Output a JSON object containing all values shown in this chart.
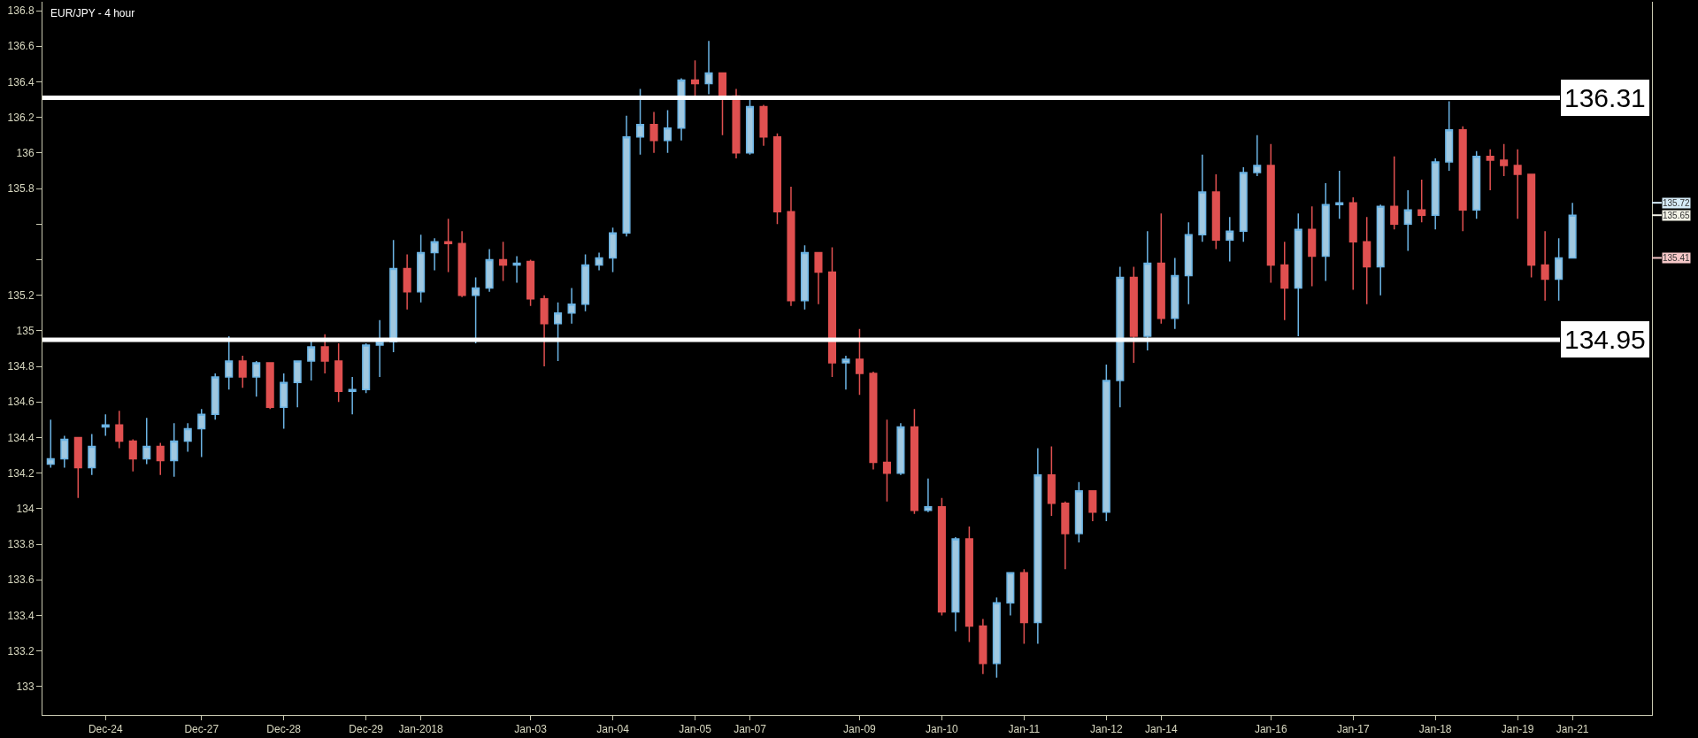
{
  "chart_data": {
    "type": "candlestick",
    "title": "EUR/JPY - 4 hour",
    "categories": [
      null,
      null,
      null,
      null,
      "Dec-24",
      null,
      null,
      null,
      null,
      null,
      null,
      "Dec-27",
      null,
      null,
      null,
      null,
      null,
      "Dec-28",
      null,
      null,
      null,
      null,
      null,
      "Dec-29",
      null,
      null,
      null,
      "Jan-2018",
      null,
      null,
      null,
      null,
      null,
      null,
      null,
      "Jan-03",
      null,
      null,
      null,
      null,
      null,
      "Jan-04",
      null,
      null,
      null,
      null,
      null,
      "Jan-05",
      null,
      null,
      null,
      "Jan-07",
      null,
      null,
      null,
      null,
      null,
      null,
      null,
      "Jan-09",
      null,
      null,
      null,
      null,
      null,
      "Jan-10",
      null,
      null,
      null,
      null,
      null,
      "Jan-11",
      null,
      null,
      null,
      null,
      null,
      "Jan-12",
      null,
      null,
      null,
      "Jan-14",
      null,
      null,
      null,
      null,
      null,
      null,
      null,
      "Jan-16",
      null,
      null,
      null,
      null,
      null,
      "Jan-17",
      null,
      null,
      null,
      null,
      null,
      "Jan-18",
      null,
      null,
      null,
      null,
      null,
      "Jan-19",
      null,
      null,
      null,
      "Jan-21"
    ],
    "ohlc": [
      [
        134.25,
        134.5,
        134.23,
        134.28
      ],
      [
        134.28,
        134.41,
        134.23,
        134.39
      ],
      [
        134.4,
        134.4,
        134.06,
        134.23
      ],
      [
        134.23,
        134.42,
        134.19,
        134.35
      ],
      [
        134.46,
        134.53,
        134.41,
        134.47
      ],
      [
        134.47,
        134.55,
        134.34,
        134.38
      ],
      [
        134.38,
        134.39,
        134.21,
        134.28
      ],
      [
        134.28,
        134.51,
        134.25,
        134.35
      ],
      [
        134.35,
        134.37,
        134.19,
        134.27
      ],
      [
        134.27,
        134.48,
        134.18,
        134.38
      ],
      [
        134.38,
        134.48,
        134.32,
        134.45
      ],
      [
        134.45,
        134.56,
        134.29,
        134.53
      ],
      [
        134.53,
        134.76,
        134.5,
        134.74
      ],
      [
        134.74,
        134.97,
        134.67,
        134.83
      ],
      [
        134.83,
        134.86,
        134.68,
        134.74
      ],
      [
        134.74,
        134.83,
        134.63,
        134.82
      ],
      [
        134.82,
        134.82,
        134.56,
        134.57
      ],
      [
        134.57,
        134.76,
        134.45,
        134.71
      ],
      [
        134.71,
        134.83,
        134.57,
        134.83
      ],
      [
        134.83,
        134.94,
        134.72,
        134.91
      ],
      [
        134.91,
        134.98,
        134.76,
        134.83
      ],
      [
        134.83,
        134.93,
        134.6,
        134.66
      ],
      [
        134.66,
        134.74,
        134.53,
        134.67
      ],
      [
        134.67,
        134.93,
        134.65,
        134.92
      ],
      [
        134.92,
        135.06,
        134.74,
        134.94
      ],
      [
        134.94,
        135.51,
        134.88,
        135.35
      ],
      [
        135.35,
        135.43,
        135.12,
        135.22
      ],
      [
        135.22,
        135.54,
        135.16,
        135.44
      ],
      [
        135.44,
        135.52,
        135.34,
        135.5
      ],
      [
        135.5,
        135.63,
        135.33,
        135.49
      ],
      [
        135.49,
        135.56,
        135.19,
        135.2
      ],
      [
        135.2,
        135.3,
        134.93,
        135.24
      ],
      [
        135.24,
        135.46,
        135.22,
        135.4
      ],
      [
        135.4,
        135.5,
        135.28,
        135.37
      ],
      [
        135.37,
        135.42,
        135.27,
        135.38
      ],
      [
        135.39,
        135.4,
        135.14,
        135.18
      ],
      [
        135.18,
        135.2,
        134.8,
        135.04
      ],
      [
        135.04,
        135.16,
        134.83,
        135.1
      ],
      [
        135.1,
        135.24,
        135.04,
        135.15
      ],
      [
        135.15,
        135.43,
        135.11,
        135.37
      ],
      [
        135.37,
        135.44,
        135.34,
        135.41
      ],
      [
        135.41,
        135.58,
        135.33,
        135.55
      ],
      [
        135.55,
        136.21,
        135.53,
        136.09
      ],
      [
        136.09,
        136.36,
        135.99,
        136.16
      ],
      [
        136.16,
        136.23,
        136.0,
        136.07
      ],
      [
        136.07,
        136.24,
        136.0,
        136.14
      ],
      [
        136.14,
        136.42,
        136.07,
        136.41
      ],
      [
        136.41,
        136.52,
        136.32,
        136.39
      ],
      [
        136.39,
        136.63,
        136.33,
        136.45
      ],
      [
        136.45,
        136.45,
        136.1,
        136.32
      ],
      [
        136.32,
        136.36,
        135.97,
        136.0
      ],
      [
        136.0,
        136.3,
        135.99,
        136.26
      ],
      [
        136.26,
        136.27,
        136.04,
        136.09
      ],
      [
        136.09,
        136.11,
        135.6,
        135.67
      ],
      [
        135.67,
        135.81,
        135.14,
        135.17
      ],
      [
        135.17,
        135.48,
        135.12,
        135.44
      ],
      [
        135.44,
        135.44,
        135.15,
        135.33
      ],
      [
        135.33,
        135.47,
        134.74,
        134.82
      ],
      [
        134.82,
        134.86,
        134.67,
        134.84
      ],
      [
        134.84,
        135.01,
        134.64,
        134.76
      ],
      [
        134.76,
        134.77,
        134.22,
        134.26
      ],
      [
        134.26,
        134.5,
        134.04,
        134.2
      ],
      [
        134.2,
        134.48,
        134.19,
        134.46
      ],
      [
        134.46,
        134.56,
        133.97,
        133.99
      ],
      [
        133.99,
        134.17,
        133.98,
        134.01
      ],
      [
        134.01,
        134.06,
        133.4,
        133.42
      ],
      [
        133.42,
        133.84,
        133.31,
        133.83
      ],
      [
        133.83,
        133.9,
        133.25,
        133.34
      ],
      [
        133.34,
        133.38,
        133.07,
        133.13
      ],
      [
        133.13,
        133.5,
        133.05,
        133.47
      ],
      [
        133.47,
        133.64,
        133.4,
        133.64
      ],
      [
        133.64,
        133.66,
        133.24,
        133.36
      ],
      [
        133.36,
        134.34,
        133.24,
        134.19
      ],
      [
        134.19,
        134.35,
        133.96,
        134.03
      ],
      [
        134.03,
        134.04,
        133.66,
        133.86
      ],
      [
        133.86,
        134.15,
        133.81,
        134.1
      ],
      [
        134.1,
        134.1,
        133.93,
        133.98
      ],
      [
        133.98,
        134.81,
        133.93,
        134.72
      ],
      [
        134.72,
        135.36,
        134.57,
        135.3
      ],
      [
        135.3,
        135.36,
        134.82,
        134.97
      ],
      [
        134.97,
        135.56,
        134.89,
        135.38
      ],
      [
        135.38,
        135.66,
        135.04,
        135.07
      ],
      [
        135.07,
        135.41,
        135.01,
        135.31
      ],
      [
        135.31,
        135.61,
        135.15,
        135.54
      ],
      [
        135.54,
        135.99,
        135.5,
        135.78
      ],
      [
        135.78,
        135.88,
        135.46,
        135.51
      ],
      [
        135.51,
        135.64,
        135.39,
        135.56
      ],
      [
        135.56,
        135.92,
        135.5,
        135.89
      ],
      [
        135.89,
        136.1,
        135.87,
        135.93
      ],
      [
        135.93,
        136.05,
        135.27,
        135.37
      ],
      [
        135.37,
        135.5,
        135.06,
        135.24
      ],
      [
        135.24,
        135.66,
        134.97,
        135.57
      ],
      [
        135.57,
        135.7,
        135.25,
        135.42
      ],
      [
        135.42,
        135.83,
        135.28,
        135.71
      ],
      [
        135.71,
        135.9,
        135.63,
        135.72
      ],
      [
        135.72,
        135.75,
        135.23,
        135.5
      ],
      [
        135.5,
        135.64,
        135.15,
        135.36
      ],
      [
        135.36,
        135.71,
        135.2,
        135.7
      ],
      [
        135.7,
        135.98,
        135.57,
        135.6
      ],
      [
        135.6,
        135.79,
        135.45,
        135.68
      ],
      [
        135.68,
        135.85,
        135.61,
        135.65
      ],
      [
        135.65,
        135.97,
        135.57,
        135.95
      ],
      [
        135.95,
        136.29,
        135.9,
        136.13
      ],
      [
        136.13,
        136.15,
        135.56,
        135.68
      ],
      [
        135.68,
        136.01,
        135.63,
        135.98
      ],
      [
        135.98,
        136.02,
        135.79,
        135.96
      ],
      [
        135.96,
        136.05,
        135.87,
        135.93
      ],
      [
        135.93,
        136.02,
        135.63,
        135.88
      ],
      [
        135.88,
        135.88,
        135.3,
        135.37
      ],
      [
        135.37,
        135.56,
        135.17,
        135.29
      ],
      [
        135.29,
        135.52,
        135.17,
        135.41
      ],
      [
        135.41,
        135.72,
        135.41,
        135.65
      ]
    ],
    "ylim": [
      132.84,
      136.85
    ],
    "yticks": [
      133,
      133.2,
      133.4,
      133.6,
      133.8,
      134,
      134.2,
      134.4,
      134.6,
      134.8,
      135,
      135.2,
      {
        "value": 135.4,
        "label": null
      },
      {
        "value": 135.6,
        "label": null
      },
      135.8,
      136,
      136.2,
      136.4,
      136.6,
      136.8
    ],
    "ref_lines": [
      {
        "axis": "y",
        "value": 136.31,
        "label": "136.31",
        "color": "#ffffff"
      },
      {
        "axis": "y",
        "value": 134.95,
        "label": "134.95",
        "color": "#ffffff"
      },
      {
        "axis": "y",
        "value": 135.72,
        "label": "135.72",
        "color": "#d6ecf8"
      },
      {
        "axis": "y",
        "value": 135.65,
        "label": "135.65",
        "color": "#f2f2e6"
      },
      {
        "axis": "y",
        "value": 135.41,
        "label": "135.41",
        "color": "#f6c8c8"
      }
    ],
    "grid": false
  }
}
